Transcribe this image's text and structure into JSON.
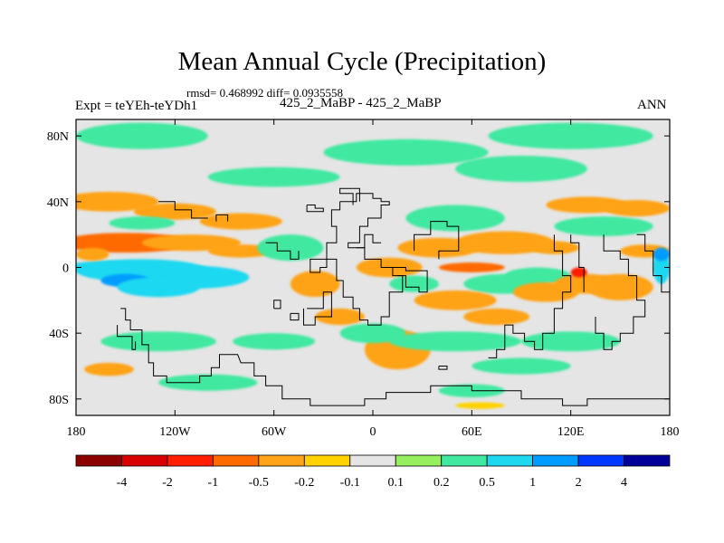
{
  "chart_data": {
    "type": "heatmap",
    "title": "Mean Annual Cycle (Precipitation)",
    "stats_text": "rmsd= 0.468992 diff= 0.0935558",
    "left_label": "Expt = teYEh-teYDh1",
    "center_label": "425_2_MaBP - 425_2_MaBP",
    "right_label": "ANN",
    "x_ticks": [
      "180",
      "120W",
      "60W",
      "0",
      "60E",
      "120E",
      "180"
    ],
    "y_ticks": [
      "80N",
      "40N",
      "0",
      "40S",
      "80S"
    ],
    "y_tick_values": [
      80,
      40,
      0,
      -40,
      -80
    ],
    "lon_range": [
      -180,
      180
    ],
    "lat_range": [
      -90,
      90
    ],
    "colorbar_labels": [
      "-4",
      "-2",
      "-1",
      "-0.5",
      "-0.2",
      "-0.1",
      "0.1",
      "0.2",
      "0.5",
      "1",
      "2",
      "4"
    ],
    "colorbar_colors": [
      "#8b0000",
      "#d90000",
      "#ff1f00",
      "#ff6a00",
      "#ffa319",
      "#ffd200",
      "#e5e5e5",
      "#95ef5e",
      "#40e8a0",
      "#1ed8f0",
      "#009cff",
      "#0037ff",
      "#000098"
    ],
    "blobs": [
      {
        "lon": -150,
        "lat": 15,
        "rx": 40,
        "ry": 6,
        "v": -0.6
      },
      {
        "lon": -110,
        "lat": 15,
        "rx": 30,
        "ry": 5,
        "v": -0.5
      },
      {
        "lon": -80,
        "lat": 10,
        "rx": 20,
        "ry": 4,
        "v": -0.3
      },
      {
        "lon": -160,
        "lat": 0,
        "rx": 25,
        "ry": 4,
        "v": 0.7
      },
      {
        "lon": -140,
        "lat": -2,
        "rx": 40,
        "ry": 7,
        "v": 0.9
      },
      {
        "lon": -110,
        "lat": -6,
        "rx": 35,
        "ry": 7,
        "v": 0.8
      },
      {
        "lon": -150,
        "lat": -8,
        "rx": 15,
        "ry": 4,
        "v": 1.8
      },
      {
        "lon": -130,
        "lat": -12,
        "rx": 25,
        "ry": 6,
        "v": 0.5
      },
      {
        "lon": -170,
        "lat": 8,
        "rx": 10,
        "ry": 4,
        "v": -0.25
      },
      {
        "lon": -160,
        "lat": 40,
        "rx": 30,
        "ry": 6,
        "v": -0.35
      },
      {
        "lon": -120,
        "lat": 34,
        "rx": 25,
        "ry": 5,
        "v": -0.3
      },
      {
        "lon": -80,
        "lat": 28,
        "rx": 25,
        "ry": 5,
        "v": -0.3
      },
      {
        "lon": -140,
        "lat": 27,
        "rx": 20,
        "ry": 4,
        "v": 0.25
      },
      {
        "lon": -50,
        "lat": 12,
        "rx": 20,
        "ry": 8,
        "v": 0.3
      },
      {
        "lon": -60,
        "lat": 55,
        "rx": 40,
        "ry": 6,
        "v": 0.3
      },
      {
        "lon": 20,
        "lat": 70,
        "rx": 50,
        "ry": 8,
        "v": 0.25
      },
      {
        "lon": -140,
        "lat": 80,
        "rx": 40,
        "ry": 8,
        "v": 0.2
      },
      {
        "lon": 120,
        "lat": 80,
        "rx": 50,
        "ry": 8,
        "v": 0.25
      },
      {
        "lon": 90,
        "lat": 60,
        "rx": 40,
        "ry": 8,
        "v": 0.2
      },
      {
        "lon": 50,
        "lat": 30,
        "rx": 30,
        "ry": 8,
        "v": 0.3
      },
      {
        "lon": 140,
        "lat": 25,
        "rx": 30,
        "ry": 6,
        "v": 0.3
      },
      {
        "lon": 165,
        "lat": 10,
        "rx": 15,
        "ry": 4,
        "v": -0.35
      },
      {
        "lon": 130,
        "lat": 38,
        "rx": 25,
        "ry": 5,
        "v": -0.3
      },
      {
        "lon": 160,
        "lat": 36,
        "rx": 20,
        "ry": 5,
        "v": -0.3
      },
      {
        "lon": 80,
        "lat": 15,
        "rx": 30,
        "ry": 7,
        "v": -0.3
      },
      {
        "lon": 40,
        "lat": 12,
        "rx": 25,
        "ry": 6,
        "v": -0.3
      },
      {
        "lon": 60,
        "lat": 0,
        "rx": 20,
        "ry": 3,
        "v": -0.6
      },
      {
        "lon": 110,
        "lat": 12,
        "rx": 15,
        "ry": 4,
        "v": -0.4
      },
      {
        "lon": 10,
        "lat": 0,
        "rx": 20,
        "ry": 6,
        "v": -0.3
      },
      {
        "lon": 25,
        "lat": -10,
        "rx": 15,
        "ry": 5,
        "v": 0.25
      },
      {
        "lon": 80,
        "lat": -10,
        "rx": 25,
        "ry": 6,
        "v": 0.4
      },
      {
        "lon": 100,
        "lat": -5,
        "rx": 20,
        "ry": 5,
        "v": 0.3
      },
      {
        "lon": -35,
        "lat": -10,
        "rx": 15,
        "ry": 8,
        "v": -0.3
      },
      {
        "lon": -20,
        "lat": -30,
        "rx": 15,
        "ry": 5,
        "v": -0.3
      },
      {
        "lon": 50,
        "lat": -20,
        "rx": 25,
        "ry": 6,
        "v": -0.3
      },
      {
        "lon": 75,
        "lat": -30,
        "rx": 20,
        "ry": 5,
        "v": -0.3
      },
      {
        "lon": 105,
        "lat": -15,
        "rx": 20,
        "ry": 6,
        "v": -0.3
      },
      {
        "lon": 130,
        "lat": -10,
        "rx": 20,
        "ry": 6,
        "v": -0.3
      },
      {
        "lon": 125,
        "lat": -3,
        "rx": 5,
        "ry": 3,
        "v": -1.2
      },
      {
        "lon": 150,
        "lat": -12,
        "rx": 20,
        "ry": 8,
        "v": -0.3
      },
      {
        "lon": 175,
        "lat": 0,
        "rx": 5,
        "ry": 10,
        "v": 0.6
      },
      {
        "lon": 175,
        "lat": 8,
        "rx": 5,
        "ry": 4,
        "v": 1.5
      },
      {
        "lon": 15,
        "lat": -50,
        "rx": 20,
        "ry": 12,
        "v": -0.3
      },
      {
        "lon": 0,
        "lat": -40,
        "rx": 20,
        "ry": 6,
        "v": 0.3
      },
      {
        "lon": -130,
        "lat": -45,
        "rx": 35,
        "ry": 6,
        "v": 0.3
      },
      {
        "lon": -160,
        "lat": -62,
        "rx": 15,
        "ry": 4,
        "v": -0.3
      },
      {
        "lon": -60,
        "lat": -45,
        "rx": 25,
        "ry": 5,
        "v": 0.3
      },
      {
        "lon": 50,
        "lat": -45,
        "rx": 40,
        "ry": 6,
        "v": 0.3
      },
      {
        "lon": 120,
        "lat": -45,
        "rx": 30,
        "ry": 6,
        "v": 0.3
      },
      {
        "lon": 90,
        "lat": -60,
        "rx": 30,
        "ry": 5,
        "v": 0.25
      },
      {
        "lon": 60,
        "lat": -75,
        "rx": 20,
        "ry": 4,
        "v": 0.25
      },
      {
        "lon": -100,
        "lat": -70,
        "rx": 30,
        "ry": 5,
        "v": 0.25
      },
      {
        "lon": 65,
        "lat": -84,
        "rx": 15,
        "ry": 2,
        "v": -0.15
      }
    ],
    "coastlines": [
      [
        [
          -153,
          -25
        ],
        [
          -150,
          -25
        ],
        [
          -150,
          -32
        ],
        [
          -147,
          -32
        ],
        [
          -147,
          -38
        ],
        [
          -140,
          -38
        ],
        [
          -140,
          -47
        ],
        [
          -136,
          -47
        ],
        [
          -136,
          -58
        ],
        [
          -133,
          -58
        ],
        [
          -133,
          -66
        ],
        [
          -125,
          -66
        ],
        [
          -125,
          -70
        ],
        [
          -116,
          -70
        ],
        [
          -116,
          -70
        ],
        [
          -105,
          -70
        ],
        [
          -105,
          -66
        ],
        [
          -98,
          -66
        ],
        [
          -98,
          -61
        ],
        [
          -93,
          -61
        ],
        [
          -93,
          -53
        ],
        [
          -82,
          -53
        ],
        [
          -80,
          -58
        ],
        [
          -72,
          -58
        ],
        [
          -72,
          -66
        ],
        [
          -65,
          -66
        ],
        [
          -65,
          -72
        ],
        [
          -55,
          -72
        ],
        [
          -55,
          -80
        ],
        [
          -38,
          -80
        ],
        [
          -38,
          -84
        ],
        [
          -5,
          -84
        ],
        [
          -5,
          -80
        ],
        [
          8,
          -80
        ],
        [
          8,
          -76
        ],
        [
          35,
          -76
        ],
        [
          35,
          -72
        ],
        [
          60,
          -72
        ],
        [
          60,
          -75
        ],
        [
          90,
          -75
        ],
        [
          90,
          -80
        ],
        [
          115,
          -80
        ],
        [
          115,
          -84
        ],
        [
          130,
          -84
        ],
        [
          130,
          -80
        ],
        [
          180,
          -80
        ]
      ],
      [
        [
          -20,
          40
        ],
        [
          -10,
          40
        ],
        [
          -10,
          45
        ],
        [
          0,
          45
        ],
        [
          0,
          42
        ],
        [
          5,
          42
        ],
        [
          5,
          40
        ],
        [
          10,
          40
        ],
        [
          10,
          38
        ],
        [
          5,
          38
        ],
        [
          5,
          30
        ],
        [
          -3,
          30
        ],
        [
          -3,
          25
        ],
        [
          -8,
          25
        ],
        [
          -8,
          15
        ],
        [
          -15,
          15
        ],
        [
          -15,
          12
        ],
        [
          -5,
          12
        ],
        [
          -5,
          5
        ],
        [
          5,
          5
        ],
        [
          5,
          0
        ],
        [
          12,
          0
        ],
        [
          12,
          -5
        ],
        [
          18,
          -5
        ],
        [
          18,
          -15
        ],
        [
          10,
          -15
        ],
        [
          10,
          -30
        ],
        [
          5,
          -30
        ],
        [
          5,
          -35
        ],
        [
          -3,
          -35
        ],
        [
          -3,
          -32
        ],
        [
          -8,
          -32
        ],
        [
          -8,
          -25
        ],
        [
          -12,
          -25
        ],
        [
          -12,
          -18
        ],
        [
          -18,
          -18
        ],
        [
          -18,
          -8
        ],
        [
          -22,
          -8
        ],
        [
          -22,
          5
        ],
        [
          -28,
          5
        ],
        [
          -28,
          15
        ],
        [
          -22,
          15
        ],
        [
          -22,
          25
        ],
        [
          -25,
          25
        ],
        [
          -25,
          35
        ],
        [
          -20,
          35
        ],
        [
          -20,
          40
        ]
      ],
      [
        [
          10,
          0
        ],
        [
          20,
          0
        ],
        [
          20,
          -2
        ],
        [
          33,
          -2
        ],
        [
          33,
          -15
        ],
        [
          28,
          -15
        ],
        [
          28,
          -12
        ],
        [
          20,
          -12
        ],
        [
          20,
          -5
        ],
        [
          15,
          -5
        ]
      ],
      [
        [
          25,
          10
        ],
        [
          25,
          20
        ],
        [
          35,
          20
        ],
        [
          35,
          28
        ],
        [
          45,
          28
        ],
        [
          45,
          25
        ],
        [
          52,
          25
        ],
        [
          52,
          10
        ],
        [
          40,
          10
        ],
        [
          40,
          5
        ]
      ],
      [
        [
          -35,
          5
        ],
        [
          -28,
          5
        ],
        [
          -28,
          0
        ],
        [
          -32,
          0
        ],
        [
          -32,
          -3
        ],
        [
          -38,
          -3
        ],
        [
          -38,
          5
        ],
        [
          -35,
          5
        ]
      ],
      [
        [
          -40,
          -25
        ],
        [
          -30,
          -25
        ],
        [
          -30,
          -15
        ],
        [
          -25,
          -15
        ],
        [
          -25,
          -30
        ],
        [
          -35,
          -30
        ],
        [
          -35,
          -35
        ],
        [
          -42,
          -35
        ],
        [
          -42,
          -25
        ]
      ],
      [
        [
          -130,
          40
        ],
        [
          -120,
          40
        ],
        [
          -120,
          35
        ],
        [
          -110,
          35
        ],
        [
          -110,
          30
        ],
        [
          -100,
          30
        ]
      ],
      [
        [
          -155,
          -35
        ],
        [
          -155,
          -42
        ],
        [
          -146,
          -42
        ],
        [
          -146,
          -50
        ],
        [
          -144,
          -50
        ],
        [
          -144,
          -45
        ]
      ],
      [
        [
          -65,
          15
        ],
        [
          -58,
          15
        ],
        [
          -58,
          10
        ],
        [
          -50,
          10
        ],
        [
          -50,
          5
        ],
        [
          -45,
          5
        ],
        [
          -45,
          10
        ]
      ],
      [
        [
          -10,
          12
        ],
        [
          -5,
          12
        ],
        [
          -5,
          20
        ],
        [
          0,
          20
        ],
        [
          0,
          15
        ],
        [
          5,
          15
        ]
      ],
      [
        [
          -12,
          38
        ],
        [
          -12,
          45
        ],
        [
          -20,
          45
        ],
        [
          -20,
          48
        ],
        [
          -8,
          48
        ],
        [
          -8,
          40
        ]
      ],
      [
        [
          -95,
          28
        ],
        [
          -95,
          32
        ],
        [
          -88,
          32
        ],
        [
          -88,
          28
        ]
      ],
      [
        [
          110,
          20
        ],
        [
          110,
          10
        ],
        [
          115,
          10
        ],
        [
          115,
          -5
        ],
        [
          120,
          -5
        ],
        [
          120,
          -15
        ],
        [
          115,
          -15
        ],
        [
          115,
          -25
        ],
        [
          110,
          -25
        ],
        [
          110,
          -40
        ],
        [
          103,
          -40
        ],
        [
          103,
          -50
        ],
        [
          98,
          -50
        ],
        [
          98,
          -45
        ],
        [
          92,
          -45
        ],
        [
          92,
          -40
        ],
        [
          85,
          -40
        ],
        [
          85,
          -35
        ],
        [
          80,
          -35
        ],
        [
          80,
          -50
        ],
        [
          75,
          -50
        ],
        [
          75,
          -55
        ],
        [
          70,
          -55
        ]
      ],
      [
        [
          120,
          20
        ],
        [
          120,
          15
        ],
        [
          125,
          15
        ],
        [
          125,
          0
        ],
        [
          128,
          0
        ],
        [
          128,
          -15
        ]
      ],
      [
        [
          140,
          20
        ],
        [
          140,
          10
        ],
        [
          150,
          10
        ],
        [
          150,
          5
        ],
        [
          155,
          5
        ],
        [
          155,
          -5
        ],
        [
          160,
          -5
        ],
        [
          160,
          -20
        ],
        [
          165,
          -20
        ],
        [
          165,
          -30
        ],
        [
          158,
          -30
        ],
        [
          158,
          -40
        ],
        [
          150,
          -40
        ],
        [
          150,
          -45
        ],
        [
          145,
          -45
        ],
        [
          145,
          -50
        ],
        [
          140,
          -50
        ],
        [
          140,
          -40
        ],
        [
          135,
          -40
        ],
        [
          135,
          -30
        ]
      ],
      [
        [
          160,
          20
        ],
        [
          165,
          20
        ],
        [
          165,
          10
        ],
        [
          170,
          10
        ],
        [
          170,
          -5
        ],
        [
          175,
          -5
        ],
        [
          175,
          -15
        ],
        [
          180,
          -15
        ]
      ],
      [
        [
          40,
          -60
        ],
        [
          40,
          -62
        ],
        [
          45,
          -62
        ],
        [
          45,
          -60
        ],
        [
          40,
          -60
        ]
      ],
      [
        [
          -50,
          -28
        ],
        [
          -50,
          -32
        ],
        [
          -45,
          -32
        ],
        [
          -45,
          -28
        ],
        [
          -50,
          -28
        ]
      ],
      [
        [
          -60,
          -25
        ],
        [
          -56,
          -25
        ],
        [
          -56,
          -20
        ],
        [
          -60,
          -20
        ],
        [
          -60,
          -25
        ]
      ],
      [
        [
          -40,
          38
        ],
        [
          -35,
          38
        ],
        [
          -35,
          36
        ],
        [
          -30,
          36
        ],
        [
          -30,
          34
        ],
        [
          -40,
          34
        ],
        [
          -40,
          38
        ]
      ]
    ]
  }
}
